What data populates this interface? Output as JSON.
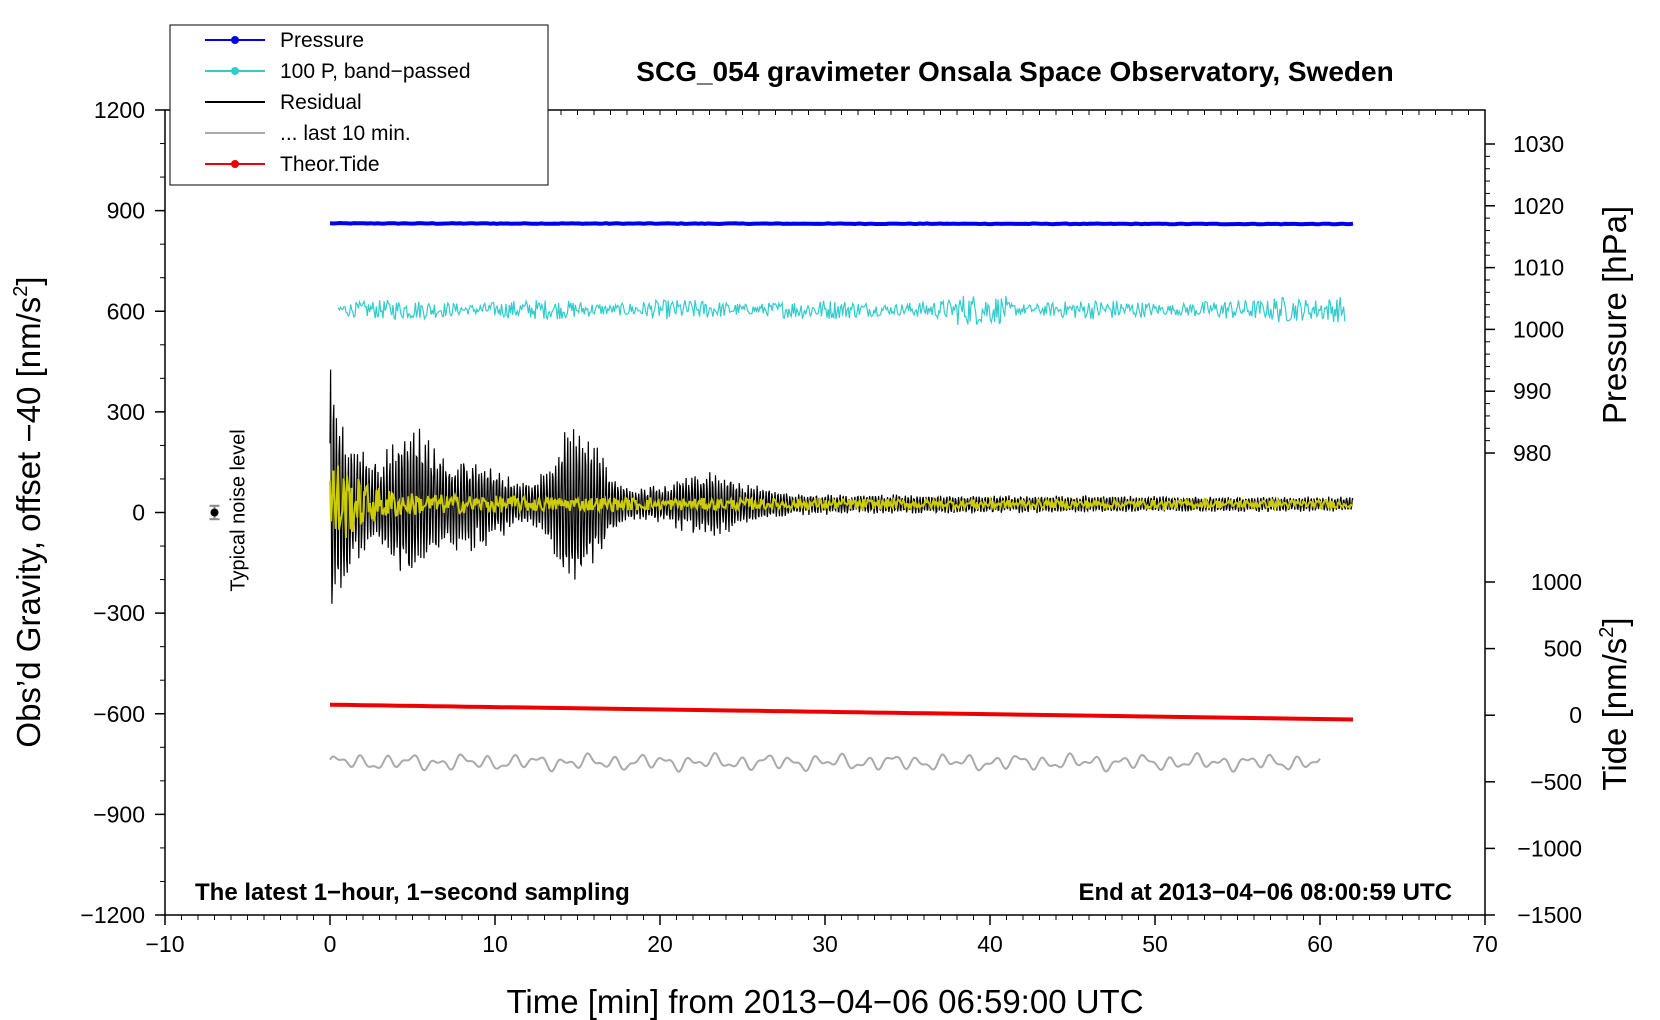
{
  "chart_data": {
    "type": "line",
    "title": "SCG_054 gravimeter Onsala Space Observatory, Sweden",
    "xlabel": "Time [min] from 2013−04−06 06:59:00 UTC",
    "ylabel": "Obs’d Gravity, offset −40 [nm/s²]",
    "ylabel_parts": [
      "Obs’d Gravity, offset −40 [nm/s",
      "2",
      "]"
    ],
    "xlim": [
      -10,
      70
    ],
    "ylim": [
      -1200,
      1200
    ],
    "x_ticks": [
      "−10",
      "0",
      "10",
      "20",
      "30",
      "40",
      "50",
      "60",
      "70"
    ],
    "y_ticks": [
      "1200",
      "900",
      "600",
      "300",
      "0",
      "−300",
      "−600",
      "−900",
      "−1200"
    ],
    "right_axis_pressure": {
      "label": "Pressure [hPa]",
      "ticks": [
        "1030",
        "1020",
        "1010",
        "1000",
        "990",
        "980"
      ],
      "tick_values": [
        1030,
        1020,
        1010,
        1000,
        990,
        980
      ]
    },
    "right_axis_tide": {
      "label_parts": [
        "Tide [nm/s",
        "2",
        "]"
      ],
      "ticks": [
        "1000",
        "500",
        "0",
        "−500",
        "−1000",
        "−1500"
      ],
      "tick_values": [
        1000,
        500,
        0,
        -500,
        -1000,
        -1500
      ]
    },
    "legend": [
      {
        "name": "Pressure",
        "color": "#0000ee",
        "marker": true
      },
      {
        "name": "100 P, band−passed",
        "color": "#33cccc",
        "marker": true
      },
      {
        "name": "Residual",
        "color": "#000000",
        "marker": false
      },
      {
        "name": "... last 10 min.",
        "color": "#aaaaaa",
        "marker": false
      },
      {
        "name": "Theor.Tide",
        "color": "#ee0000",
        "marker": true
      }
    ],
    "legend_position": "top-left",
    "series": [
      {
        "name": "Pressure",
        "color": "#0000ee",
        "x_range": [
          0,
          62
        ],
        "y_start": 862,
        "y_end": 860
      },
      {
        "name": "100 P, band−passed",
        "color": "#33cccc",
        "x_range": [
          0.5,
          61.5
        ],
        "y_center": 605,
        "amplitude": 30
      },
      {
        "name": "Residual",
        "color": "#000000",
        "x_range": [
          0,
          62
        ],
        "y_center": 25,
        "amplitude_start": 450,
        "amplitude_end": 20
      },
      {
        "name": "... last 10 min.",
        "color": "#aaaaaa",
        "x_range": [
          0,
          60
        ],
        "y_center": -745,
        "amplitude": 25
      },
      {
        "name": "Theor.Tide",
        "color": "#ee0000",
        "x_range": [
          0,
          62
        ],
        "y_start": -573,
        "y_end": -617
      },
      {
        "name": "",
        "color": "#cccc00",
        "x_range": [
          0,
          62
        ],
        "y_center": 25,
        "amplitude_start": 150,
        "amplitude_end": 10
      }
    ],
    "noise_level": {
      "label": "Typical noise level",
      "x": -7,
      "y": 0,
      "error": 20
    },
    "annotations": {
      "bottom_left": "The latest 1−hour, 1−second sampling",
      "bottom_right": "End at 2013−04−06 08:00:59 UTC"
    },
    "grid": false
  }
}
